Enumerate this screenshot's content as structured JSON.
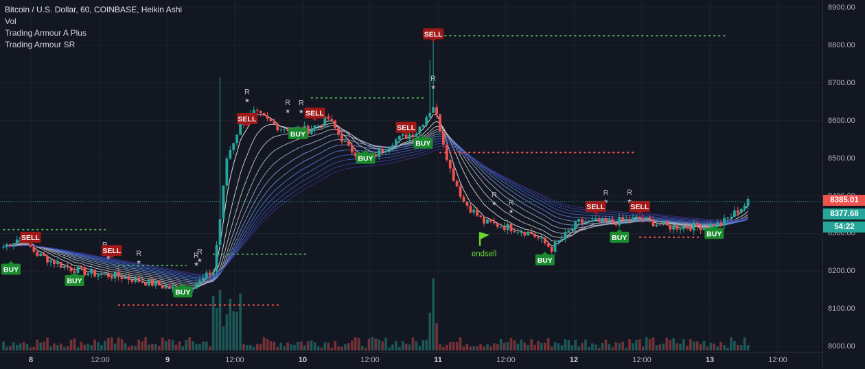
{
  "legend": {
    "title": "Bitcoin / U.S. Dollar, 60, COINBASE, Heikin Ashi",
    "indicator_1": "Vol",
    "indicator_2": "Trading Armour A Plus",
    "indicator_3": "Trading Armour SR"
  },
  "price_axis": {
    "ticks": [
      "8900.00",
      "8800.00",
      "8700.00",
      "8600.00",
      "8500.00",
      "8400.00",
      "8300.00",
      "8200.00",
      "8100.00",
      "8000.00"
    ],
    "tick_values": [
      8900,
      8800,
      8700,
      8600,
      8500,
      8400,
      8300,
      8200,
      8100,
      8000
    ],
    "last_price": "8385.01",
    "last_price_value": 8385.01,
    "ma_price": "8377.68",
    "ma_price_value": 8377.68,
    "countdown": "54:22"
  },
  "time_axis": {
    "ticks": [
      "8",
      "12:00",
      "9",
      "12:00",
      "10",
      "12:00",
      "11",
      "12:00",
      "12",
      "12:00",
      "13",
      "12:00"
    ],
    "day_flags": [
      true,
      false,
      true,
      false,
      true,
      false,
      true,
      false,
      true,
      false,
      true,
      false
    ]
  },
  "colors": {
    "background": "#131722",
    "up": "#26a69a",
    "down": "#ef5350",
    "buy": "#1b8b2f",
    "sell": "#a01818",
    "last_price": "#ef5350",
    "ma_badge": "#26a69a",
    "sr_green": "#4caf50",
    "sr_red": "#ef5350",
    "endsell": "#6bd62e"
  },
  "chart_data": {
    "type": "candlestick",
    "symbol": "Bitcoin / U.S. Dollar, 60, COINBASE, Heikin Ashi",
    "ylim": [
      7990,
      8910
    ],
    "signals": [
      {
        "label": "BUY",
        "time_index": 0,
        "price": 8205
      },
      {
        "label": "SELL",
        "time_index": 8,
        "price": 8290
      },
      {
        "label": "BUY",
        "time_index": 21,
        "price": 8175
      },
      {
        "label": "SELL",
        "time_index": 32,
        "price": 8255
      },
      {
        "label": "BUY",
        "time_index": 53,
        "price": 8145
      },
      {
        "label": "SELL",
        "time_index": 72,
        "price": 8605
      },
      {
        "label": "BUY",
        "time_index": 87,
        "price": 8565
      },
      {
        "label": "SELL",
        "time_index": 92,
        "price": 8620
      },
      {
        "label": "BUY",
        "time_index": 107,
        "price": 8500
      },
      {
        "label": "SELL",
        "time_index": 119,
        "price": 8582
      },
      {
        "label": "BUY",
        "time_index": 124,
        "price": 8540
      },
      {
        "label": "SELL",
        "time_index": 127,
        "price": 8830
      },
      {
        "label": "BUY",
        "time_index": 160,
        "price": 8230
      },
      {
        "label": "SELL",
        "time_index": 175,
        "price": 8372
      },
      {
        "label": "BUY",
        "time_index": 182,
        "price": 8290
      },
      {
        "label": "SELL",
        "time_index": 188,
        "price": 8372
      },
      {
        "label": "BUY",
        "time_index": 210,
        "price": 8300
      }
    ],
    "endsell": {
      "label": "endsell",
      "time_index": 142,
      "price": 8300
    },
    "r_markers": [
      30,
      31,
      40,
      57,
      58,
      72,
      84,
      88,
      127,
      145,
      150,
      178,
      185
    ],
    "sr_lines": [
      {
        "color": "green",
        "price": 8310,
        "from": 0,
        "to": 31
      },
      {
        "color": "green",
        "price": 8215,
        "from": 34,
        "to": 54
      },
      {
        "color": "green",
        "price": 8245,
        "from": 62,
        "to": 90
      },
      {
        "color": "green",
        "price": 8660,
        "from": 91,
        "to": 125
      },
      {
        "color": "green",
        "price": 8825,
        "from": 129,
        "to": 214
      },
      {
        "color": "red",
        "price": 8110,
        "from": 34,
        "to": 82
      },
      {
        "color": "red",
        "price": 8515,
        "from": 129,
        "to": 187
      },
      {
        "color": "red",
        "price": 8290,
        "from": 188,
        "to": 206
      }
    ]
  }
}
